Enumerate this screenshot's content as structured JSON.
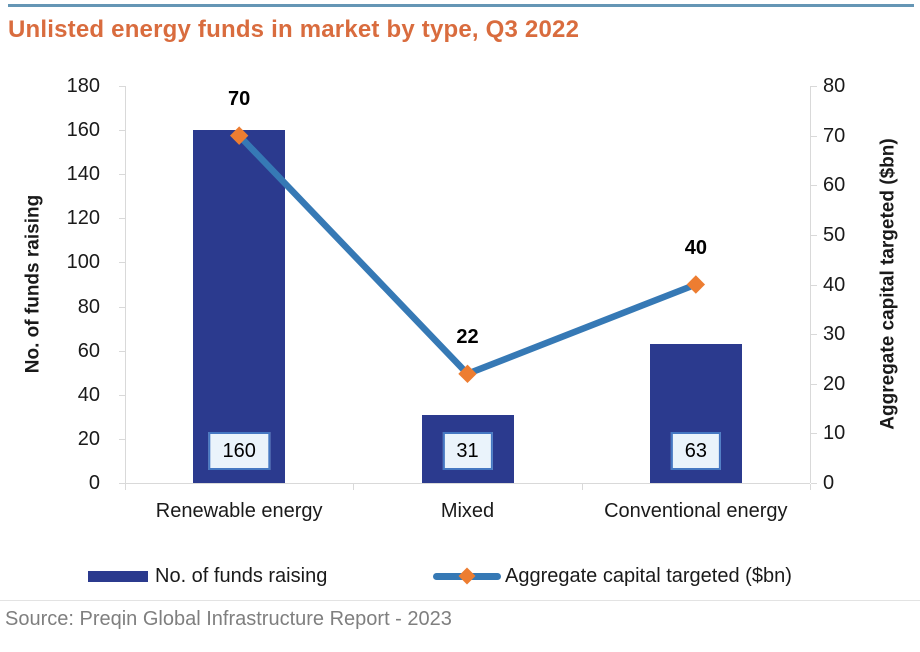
{
  "header": {
    "title": "Unlisted energy funds in market by type, Q3 2022"
  },
  "source": {
    "text": "Source: Preqin Global Infrastructure Report - 2023"
  },
  "chart_data": {
    "type": "combo",
    "title": "Unlisted energy funds in market by type, Q3 2022",
    "categories": [
      "Renewable energy",
      "Mixed",
      "Conventional energy"
    ],
    "series": [
      {
        "name": "No. of funds raising",
        "type": "bar",
        "axis": "left",
        "values": [
          160,
          31,
          63
        ]
      },
      {
        "name": "Aggregate capital targeted ($bn)",
        "type": "line",
        "axis": "right",
        "values": [
          70,
          22,
          40
        ]
      }
    ],
    "left_axis": {
      "label": "No. of funds raising",
      "min": 0,
      "max": 180,
      "step": 20
    },
    "right_axis": {
      "label": "Aggregate capital targeted ($bn)",
      "min": 0,
      "max": 80,
      "step": 10
    },
    "grid": false,
    "legend_position": "bottom"
  },
  "colors": {
    "title": "#d96c3e",
    "top_rule": "#6596b5",
    "bar_fill": "#2b3a8e",
    "line_stroke": "#3679b5",
    "marker_fill": "#ed7d31",
    "value_box_fill": "#eaf3fb",
    "value_box_border": "#4577c2",
    "axis_gray": "#d9d9d9",
    "source_gray": "#7f7f7f"
  }
}
